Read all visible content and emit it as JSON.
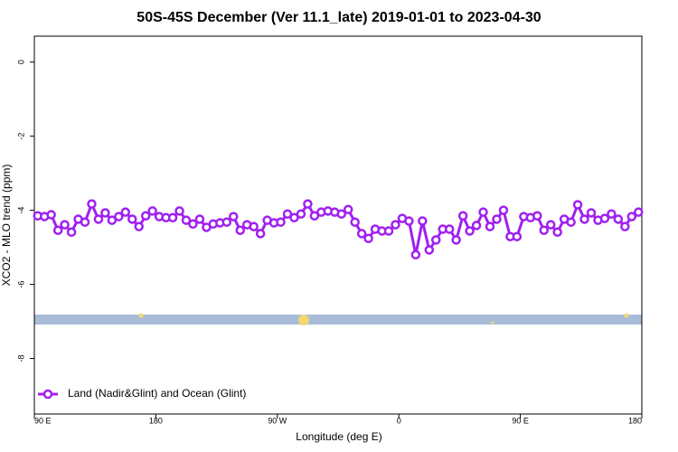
{
  "chart_data": {
    "type": "line",
    "title": "50S-45S December (Ver 11.1_late)   2019-01-01 to 2023-04-30",
    "x_label": "Longitude (deg E)",
    "y_label": "XCO2 - MLO trend (ppm)",
    "x": [
      92.5,
      97.5,
      102.5,
      107.5,
      112.5,
      117.5,
      122.5,
      127.5,
      132.5,
      137.5,
      142.5,
      147.5,
      152.5,
      157.5,
      162.5,
      167.5,
      172.5,
      177.5,
      182.5,
      187.5,
      192.5,
      197.5,
      202.5,
      207.5,
      212.5,
      217.5,
      222.5,
      227.5,
      232.5,
      237.5,
      242.5,
      247.5,
      252.5,
      257.5,
      262.5,
      267.5,
      272.5,
      277.5,
      282.5,
      287.5,
      292.5,
      297.5,
      302.5,
      307.5,
      312.5,
      317.5,
      322.5,
      327.5,
      332.5,
      337.5,
      342.5,
      347.5,
      352.5,
      357.5,
      362.5,
      367.5,
      372.5,
      377.5,
      382.5,
      387.5,
      392.5,
      397.5,
      402.5,
      407.5,
      412.5,
      417.5,
      422.5,
      427.5,
      432.5,
      437.5,
      442.5,
      447.5,
      452.5,
      457.5,
      462.5,
      467.5,
      472.5,
      477.5,
      482.5,
      487.5,
      492.5,
      497.5,
      502.5,
      507.5,
      512.5,
      517.5,
      522.5,
      527.5,
      532.5,
      537.5
    ],
    "series": [
      {
        "name": "Land (Nadir&Glint) and Ocean (Glint)",
        "color": "#a020f0",
        "values": [
          -4.15,
          -4.17,
          -4.12,
          -4.54,
          -4.39,
          -4.59,
          -4.24,
          -4.32,
          -3.83,
          -4.24,
          -4.07,
          -4.27,
          -4.17,
          -4.05,
          -4.24,
          -4.44,
          -4.15,
          -4.02,
          -4.17,
          -4.2,
          -4.2,
          -4.02,
          -4.27,
          -4.37,
          -4.24,
          -4.46,
          -4.37,
          -4.34,
          -4.32,
          -4.17,
          -4.54,
          -4.39,
          -4.44,
          -4.63,
          -4.27,
          -4.34,
          -4.32,
          -4.1,
          -4.2,
          -4.1,
          -3.83,
          -4.15,
          -4.05,
          -4.02,
          -4.05,
          -4.1,
          -3.98,
          -4.32,
          -4.63,
          -4.76,
          -4.51,
          -4.56,
          -4.56,
          -4.39,
          -4.22,
          -4.29,
          -5.2,
          -4.29,
          -5.07,
          -4.8,
          -4.51,
          -4.51,
          -4.8,
          -4.15,
          -4.56,
          -4.41,
          -4.05,
          -4.44,
          -4.24,
          -4.0,
          -4.71,
          -4.71,
          -4.17,
          -4.2,
          -4.15,
          -4.54,
          -4.39,
          -4.59,
          -4.24,
          -4.32,
          -3.85,
          -4.24,
          -4.07,
          -4.27,
          -4.22,
          -4.1,
          -4.24,
          -4.44,
          -4.17,
          -4.05
        ]
      }
    ],
    "xlim": [
      90,
      540
    ],
    "xticks": [
      {
        "value": 90,
        "label": "90 E"
      },
      180,
      {
        "value": 270,
        "label": "90 W"
      },
      {
        "value": 360,
        "label": "0"
      },
      {
        "value": 450,
        "label": "90 E"
      },
      {
        "value": 540,
        "label": "180"
      }
    ],
    "ylim": [
      -9.5,
      0.7
    ],
    "yticks": [
      0,
      -2,
      -4,
      -6,
      -8
    ],
    "legend": "lower left"
  }
}
